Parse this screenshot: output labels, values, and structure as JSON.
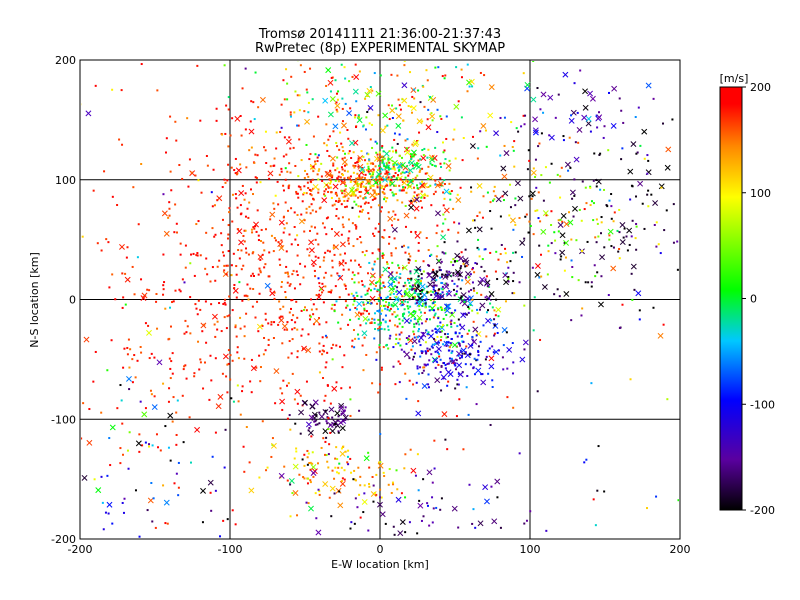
{
  "chart_data": {
    "type": "scatter",
    "title": "Tromsø 20141111 21:36:00-21:37:43",
    "subtitle": "RwPretec (8p) EXPERIMENTAL SKYMAP",
    "xlabel": "E-W location [km]",
    "ylabel": "N-S location [km]",
    "xlim": [
      -200,
      200
    ],
    "ylim": [
      -200,
      200
    ],
    "x_ticks": [
      "-200",
      "-100",
      "0",
      "100",
      "200"
    ],
    "y_ticks": [
      "-200",
      "-100",
      "0",
      "100",
      "200"
    ],
    "grid": true,
    "colorbar": {
      "label": "[m/s]",
      "range": [
        -200,
        200
      ],
      "ticks": [
        "-200",
        "-100",
        "0",
        "100",
        "200"
      ],
      "colormap": "rainbow",
      "colors": [
        "#000000",
        "#6a00a8",
        "#0000ff",
        "#00c8ff",
        "#00ff00",
        "#ffff00",
        "#ff8800",
        "#ff0000"
      ]
    },
    "markers": {
      "x_cross": "cross",
      "dot": "dot"
    },
    "clusters": [
      {
        "cx": -40,
        "cy": 40,
        "sx": 55,
        "sy": 70,
        "n": 900,
        "v": 185,
        "vs": 25,
        "cross_frac": 0.06
      },
      {
        "cx": -10,
        "cy": 100,
        "sx": 25,
        "sy": 12,
        "n": 350,
        "v": 150,
        "vs": 50,
        "cross_frac": 0.08
      },
      {
        "cx": 10,
        "cy": 110,
        "sx": 15,
        "sy": 10,
        "n": 120,
        "v": 20,
        "vs": 30,
        "cross_frac": 0.15
      },
      {
        "cx": 20,
        "cy": -5,
        "sx": 22,
        "sy": 18,
        "n": 350,
        "v": 0,
        "vs": 45,
        "cross_frac": 0.1
      },
      {
        "cx": 50,
        "cy": -45,
        "sx": 18,
        "sy": 18,
        "n": 220,
        "v": -110,
        "vs": 35,
        "cross_frac": 0.15
      },
      {
        "cx": 45,
        "cy": 15,
        "sx": 18,
        "sy": 12,
        "n": 140,
        "v": -160,
        "vs": 30,
        "cross_frac": 0.2
      },
      {
        "cx": 130,
        "cy": 50,
        "sx": 45,
        "sy": 40,
        "n": 180,
        "v": -190,
        "vs": 30,
        "cross_frac": 0.3
      },
      {
        "cx": 110,
        "cy": 70,
        "sx": 40,
        "sy": 30,
        "n": 130,
        "v": 80,
        "vs": 60,
        "cross_frac": 0.15
      },
      {
        "cx": -35,
        "cy": -100,
        "sx": 12,
        "sy": 8,
        "n": 60,
        "v": -170,
        "vs": 20,
        "cross_frac": 0.5
      },
      {
        "cx": -30,
        "cy": -145,
        "sx": 25,
        "sy": 15,
        "n": 110,
        "v": 120,
        "vs": 40,
        "cross_frac": 0.1
      },
      {
        "cx": 0,
        "cy": 160,
        "sx": 40,
        "sy": 25,
        "n": 160,
        "v": 60,
        "vs": 80,
        "cross_frac": 0.2
      },
      {
        "cx": -130,
        "cy": -20,
        "sx": 45,
        "sy": 90,
        "n": 220,
        "v": 190,
        "vs": 20,
        "cross_frac": 0.08
      },
      {
        "cx": 20,
        "cy": -170,
        "sx": 70,
        "sy": 20,
        "n": 90,
        "v": -150,
        "vs": 50,
        "cross_frac": 0.25
      },
      {
        "cx": 130,
        "cy": 150,
        "sx": 35,
        "sy": 20,
        "n": 70,
        "v": -130,
        "vs": 50,
        "cross_frac": 0.4
      },
      {
        "cx": 0,
        "cy": 0,
        "sx": 160,
        "sy": 160,
        "n": 260,
        "v": 60,
        "vs": 140,
        "cross_frac": 0.1
      },
      {
        "cx": -170,
        "cy": -140,
        "sx": 25,
        "sy": 40,
        "n": 50,
        "v": -120,
        "vs": 80,
        "cross_frac": 0.2
      }
    ]
  }
}
